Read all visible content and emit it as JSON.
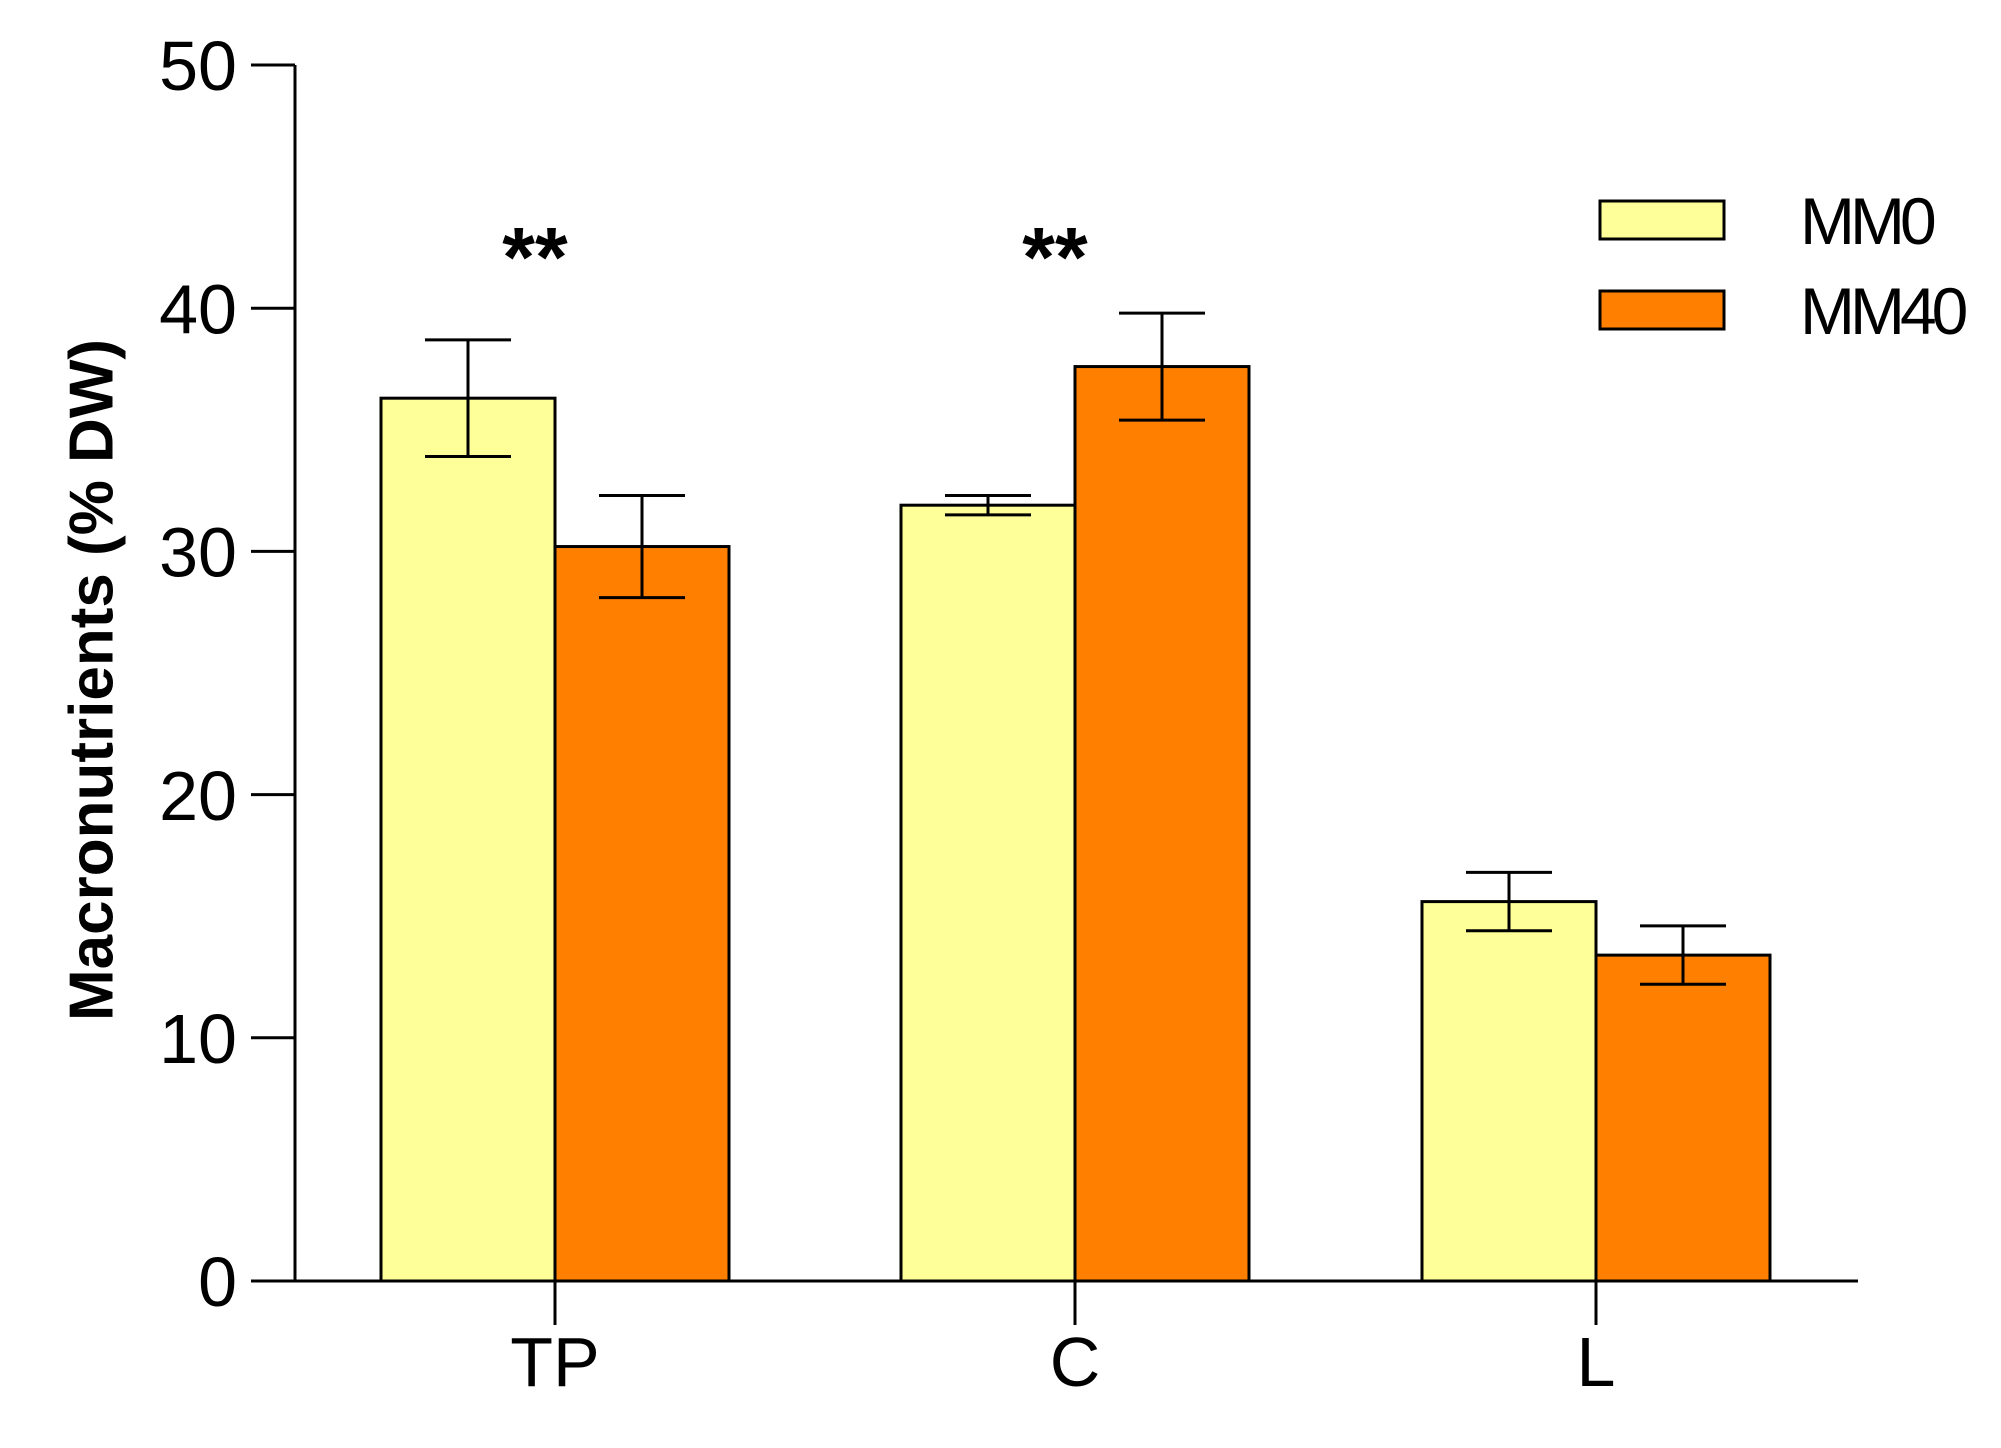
{
  "chart_data": {
    "type": "bar",
    "title": "",
    "xlabel": "",
    "ylabel": "Macronutrients (% DW)",
    "ylim": [
      0,
      50
    ],
    "yticks": [
      0,
      10,
      20,
      30,
      40,
      50
    ],
    "categories": [
      "TP",
      "C",
      "L"
    ],
    "series": [
      {
        "name": "MM0",
        "color": "#FFFF99",
        "values": [
          36.3,
          31.9,
          15.6
        ],
        "errors": [
          2.4,
          0.4,
          1.2
        ]
      },
      {
        "name": "MM40",
        "color": "#FF8000",
        "values": [
          30.2,
          37.6,
          13.4
        ],
        "errors": [
          2.1,
          2.2,
          1.2
        ]
      }
    ],
    "annotations": [
      {
        "category": "TP",
        "text": "**"
      },
      {
        "category": "C",
        "text": "**"
      }
    ],
    "legend": {
      "position": "top-right"
    },
    "grid": false
  }
}
